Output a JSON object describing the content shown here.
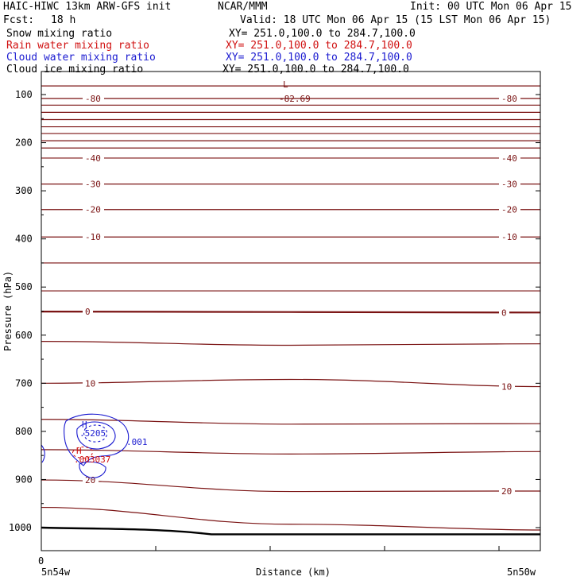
{
  "header": {
    "model": "HAIC-HIWC 13km ARW-GFS init",
    "org": "NCAR/MMM",
    "init": "Init: 00 UTC Mon 06 Apr 15",
    "fcst_label": "Fcst:",
    "fcst_value": "18 h",
    "valid": "Valid: 18 UTC Mon 06 Apr 15 (15 LST Mon 06 Apr 15)"
  },
  "fields": [
    {
      "name": "Snow mixing ratio",
      "xy": "XY= 251.0,100.0 to 284.7,100.0",
      "color": "#000000"
    },
    {
      "name": "Rain water mixing ratio",
      "xy": "XY= 251.0,100.0 to 284.7,100.0",
      "color": "#d01010"
    },
    {
      "name": "Cloud water mixing ratio",
      "xy": "XY= 251.0,100.0 to 284.7,100.0",
      "color": "#1a1ad0"
    },
    {
      "name": "Cloud ice mixing ratio",
      "xy": "XY= 251.0,100.0 to 284.7,100.0",
      "color": "#000000"
    }
  ],
  "chart_data": {
    "type": "line",
    "title": "",
    "xlabel": "Distance (km)",
    "ylabel": "Pressure (hPa)",
    "x_tick_labels": [
      "0"
    ],
    "x_end_labels": {
      "left": "5n54w",
      "right": "5n50w"
    },
    "ylim": [
      1050,
      50
    ],
    "y_ticks": [
      100,
      200,
      300,
      400,
      500,
      600,
      700,
      800,
      900,
      1000
    ],
    "temperature_color": "#7a1212",
    "temperature_contours": [
      {
        "label": "-82.69",
        "values": [
          82,
          82,
          82
        ]
      },
      {
        "label": "-80",
        "values": [
          108,
          108,
          108
        ]
      },
      {
        "label": "",
        "values": [
          122,
          122,
          122
        ]
      },
      {
        "label": "",
        "values": [
          137,
          137,
          137
        ]
      },
      {
        "label": "",
        "values": [
          152,
          152,
          152
        ]
      },
      {
        "label": "",
        "values": [
          167,
          167,
          167
        ]
      },
      {
        "label": "",
        "values": [
          181,
          181,
          181
        ]
      },
      {
        "label": "",
        "values": [
          196,
          196,
          196
        ]
      },
      {
        "label": "",
        "values": [
          211,
          211,
          211
        ]
      },
      {
        "label": "-40",
        "values": [
          232,
          232,
          232
        ]
      },
      {
        "label": "-30",
        "values": [
          286,
          286,
          286
        ]
      },
      {
        "label": "-20",
        "values": [
          339,
          339,
          339
        ]
      },
      {
        "label": "-10",
        "values": [
          396,
          396,
          396
        ]
      },
      {
        "label": "",
        "values": [
          450,
          450,
          450
        ]
      },
      {
        "label": "",
        "values": [
          508,
          508,
          508
        ]
      },
      {
        "label": "0",
        "values": [
          551,
          552,
          553
        ]
      },
      {
        "label": "",
        "values": [
          613,
          621,
          618
        ]
      },
      {
        "label": "10",
        "values": [
          700,
          692,
          707
        ]
      },
      {
        "label": "",
        "values": [
          775,
          785,
          784
        ]
      },
      {
        "label": "",
        "values": [
          838,
          847,
          842
        ]
      },
      {
        "label": "20",
        "values": [
          901,
          925,
          924
        ]
      },
      {
        "label": "",
        "values": [
          958,
          993,
          1005
        ]
      }
    ],
    "cloud_water": {
      "label": ".001",
      "max_label": "H",
      "max_value": ".5205",
      "color": "#1a1ad0"
    },
    "rain_water": {
      "label": "H",
      "max_value": ".003037",
      "color": "#d01010"
    },
    "low_marker": {
      "label": "L",
      "value": "-82.69"
    },
    "terrain_color": "#000000"
  }
}
